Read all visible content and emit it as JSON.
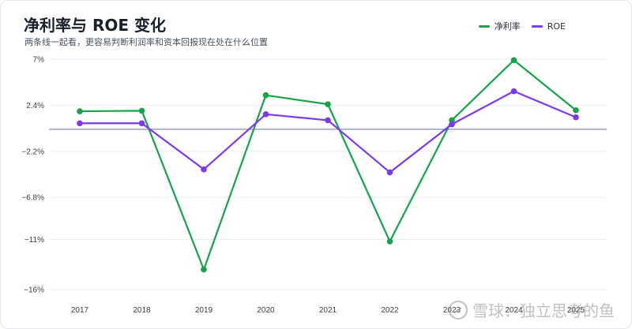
{
  "header": {
    "title": "净利率与 ROE 变化",
    "subtitle": "两条线一起看，更容易判断利润率和资本回报现在处在什么位置"
  },
  "legend": {
    "items": [
      {
        "label": "净利率",
        "color": "#16a34a"
      },
      {
        "label": "ROE",
        "color": "#7c3aed"
      }
    ]
  },
  "watermark": {
    "text": "雪球：独立思考的鱼"
  },
  "chart_data": {
    "type": "line",
    "x": [
      "2017",
      "2018",
      "2019",
      "2020",
      "2021",
      "2022",
      "2023",
      "2024",
      "2025"
    ],
    "series": [
      {
        "name": "净利率",
        "color": "#16a34a",
        "values": [
          1.8,
          1.85,
          -14.0,
          3.4,
          2.5,
          -11.2,
          0.9,
          6.9,
          1.9
        ]
      },
      {
        "name": "ROE",
        "color": "#7c3aed",
        "values": [
          0.6,
          0.6,
          -4.0,
          1.5,
          0.9,
          -4.3,
          0.5,
          3.8,
          1.2
        ]
      }
    ],
    "yticks": [
      7,
      2.4,
      -2.2,
      -6.8,
      -11,
      -16
    ],
    "ytick_labels": [
      "7%",
      "2.4%",
      "−2.2%",
      "−6.8%",
      "−11%",
      "−16%"
    ],
    "ylim": [
      -16,
      7
    ],
    "zero_line_color": "#8a8fb8",
    "grid": true,
    "legend_position": "top-right"
  }
}
